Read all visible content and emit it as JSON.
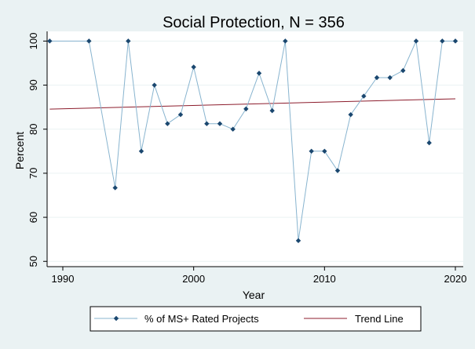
{
  "chart_data": {
    "type": "line",
    "title": "Social Protection, N = 356",
    "xlabel": "Year",
    "ylabel": "Percent",
    "xlim": [
      1988.8,
      2020.6
    ],
    "ylim": [
      48.8,
      102.2
    ],
    "x_ticks": [
      1990,
      2000,
      2010,
      2020
    ],
    "y_ticks": [
      50,
      60,
      70,
      80,
      90,
      100
    ],
    "grid": "horizontal",
    "legend_position": "bottom",
    "colors": {
      "background": "#eaf2f3",
      "plot_background": "#ffffff",
      "series_line": "#88b4cf",
      "series_marker": "#1a476f",
      "trend_line": "#8c1c2c",
      "grid": "#eaf2f3"
    },
    "series": [
      {
        "name": "% of MS+ Rated Projects",
        "points": [
          [
            1989,
            100
          ],
          [
            1992,
            100
          ],
          [
            1994,
            66.7
          ],
          [
            1995,
            100
          ],
          [
            1996,
            75
          ],
          [
            1997,
            90
          ],
          [
            1998,
            81.25
          ],
          [
            1999,
            83.3
          ],
          [
            2000,
            94.1
          ],
          [
            2001,
            81.25
          ],
          [
            2002,
            81.25
          ],
          [
            2003,
            80
          ],
          [
            2004,
            84.6
          ],
          [
            2005,
            92.7
          ],
          [
            2006,
            84.2
          ],
          [
            2007,
            100
          ],
          [
            2008,
            54.7
          ],
          [
            2009,
            75
          ],
          [
            2010,
            75
          ],
          [
            2011,
            70.6
          ],
          [
            2012,
            83.3
          ],
          [
            2013,
            87.5
          ],
          [
            2014,
            91.7
          ],
          [
            2015,
            91.7
          ],
          [
            2016,
            93.3
          ],
          [
            2017,
            100
          ],
          [
            2018,
            76.9
          ],
          [
            2019,
            100
          ],
          [
            2020,
            100
          ]
        ]
      },
      {
        "name": "Trend Line",
        "points": [
          [
            1989,
            84.55
          ],
          [
            2020,
            86.9
          ]
        ]
      }
    ]
  }
}
